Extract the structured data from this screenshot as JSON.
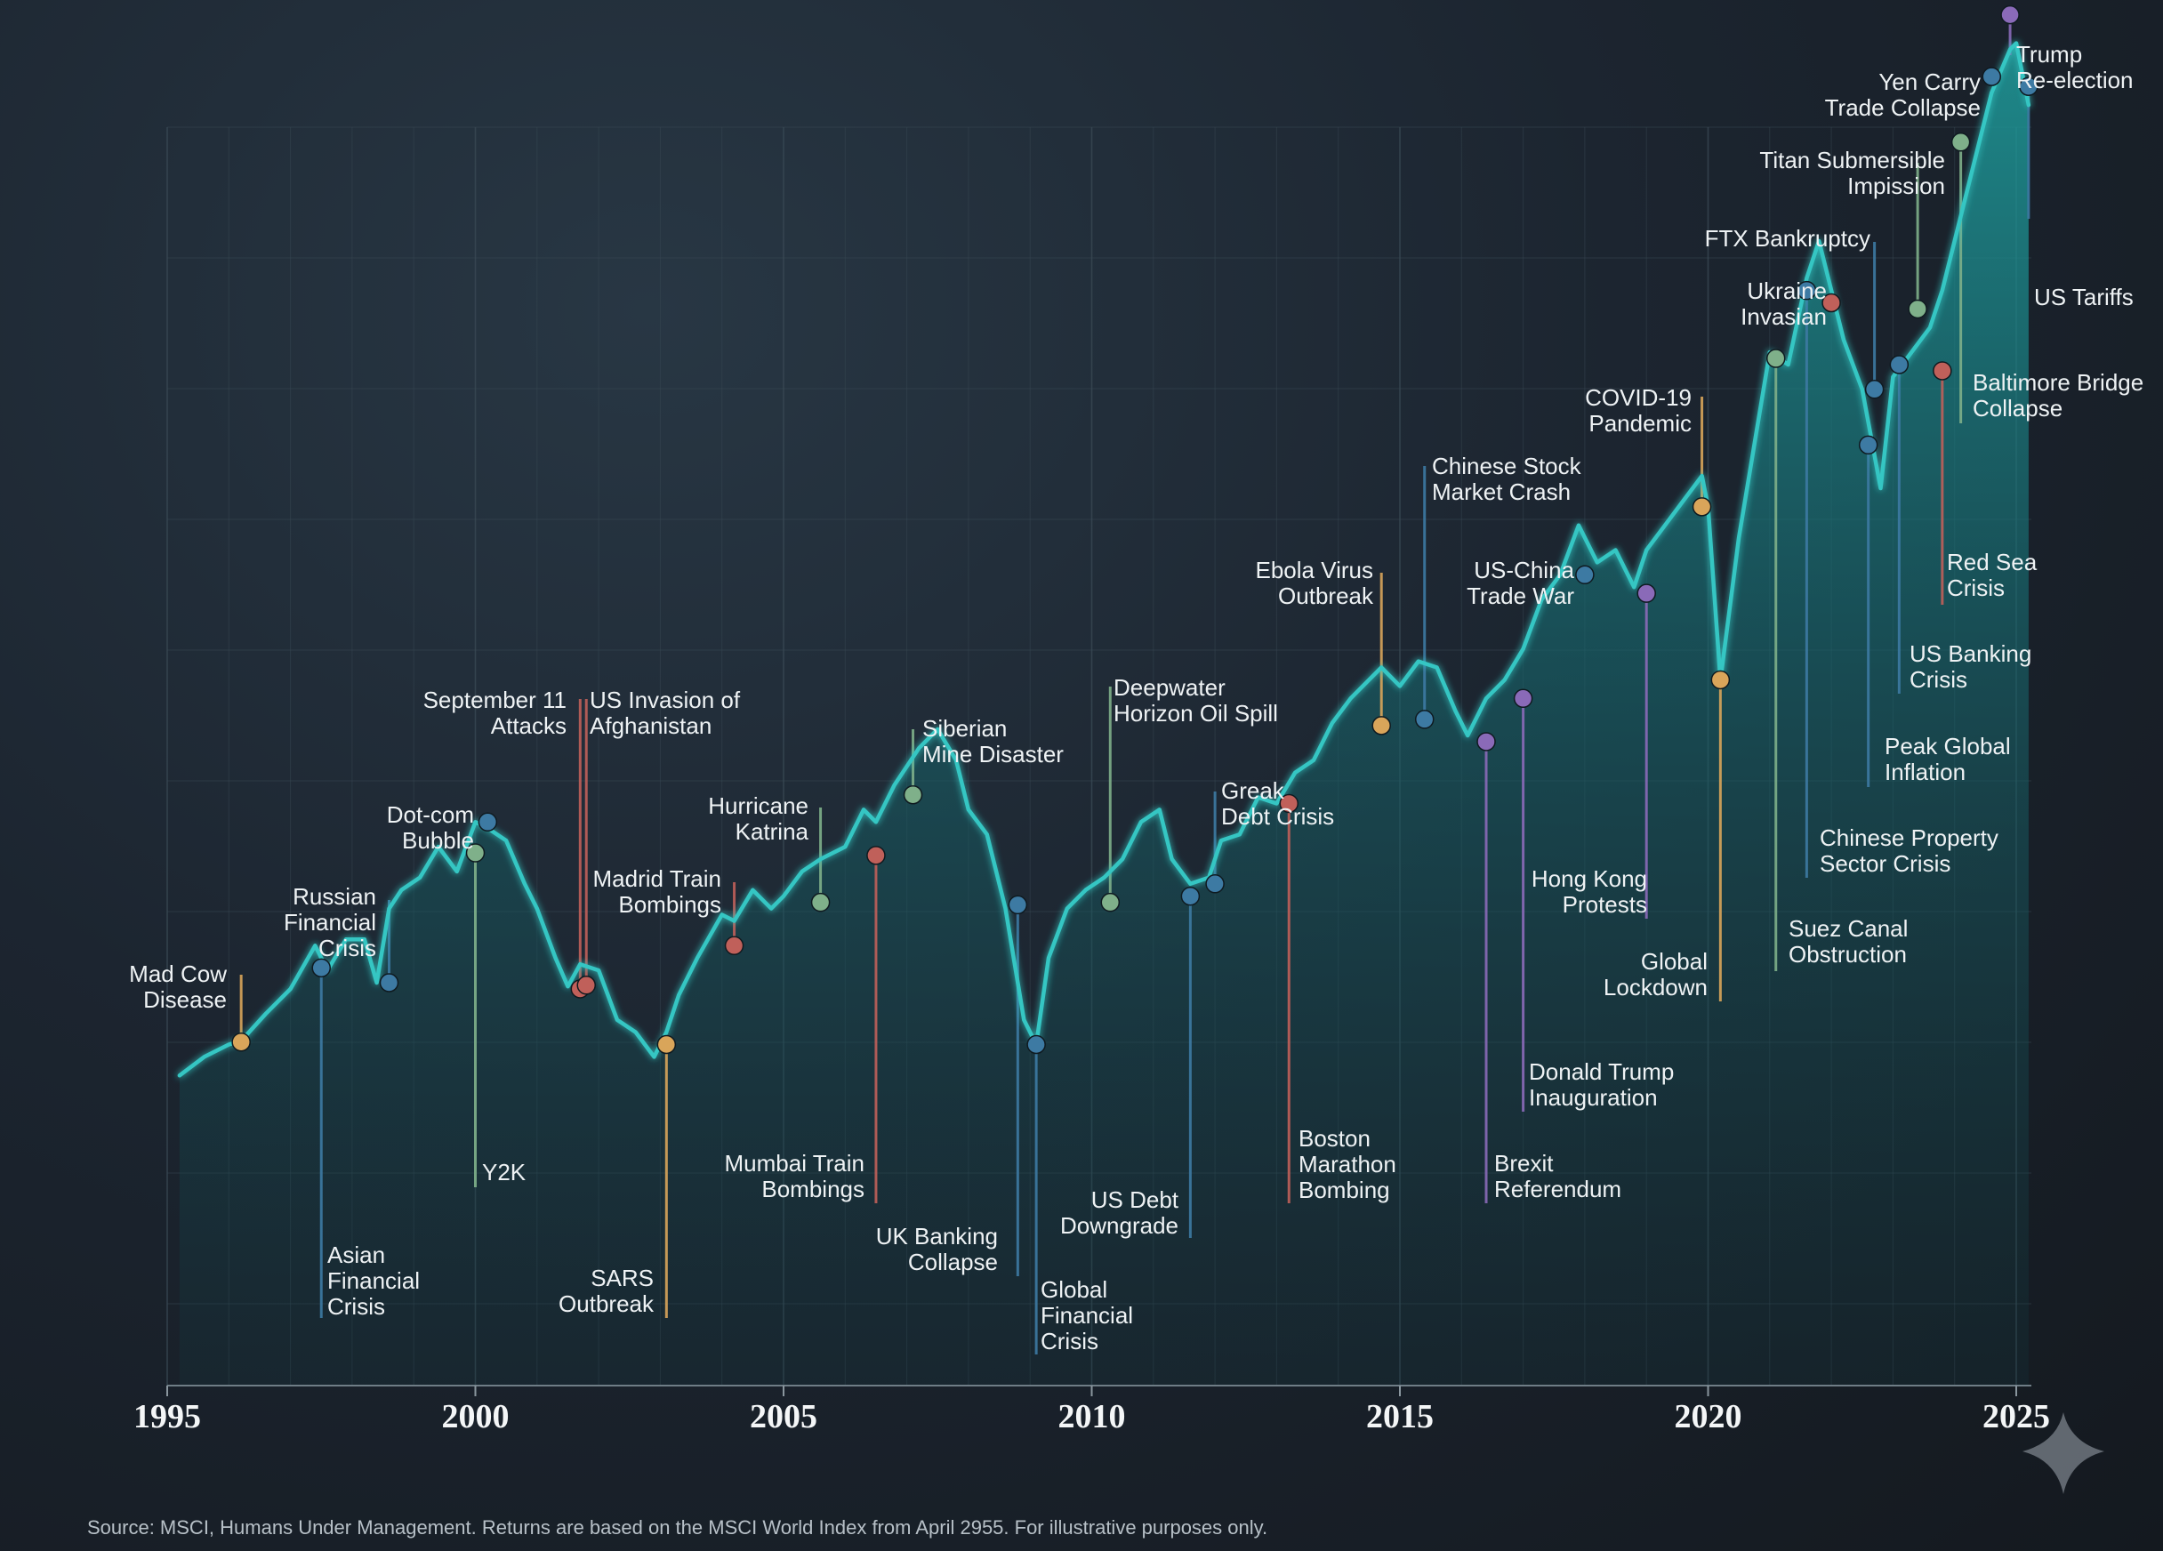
{
  "source_note": "Source: MSCI, Humans Under Management. Returns are based on the MSCI World Index from April 2955. For illustrative purposes only.",
  "colors": {
    "background": "#1a222b",
    "line": "#35c6c3",
    "area_top": "#1d8a8c",
    "grid": "#3a4a55",
    "orange": "#d9a55a",
    "blue": "#3d7aa3",
    "green": "#7fb08a",
    "red": "#c0605a",
    "purple": "#8a6ab8"
  },
  "chart_data": {
    "type": "area",
    "title": "",
    "xlabel": "",
    "ylabel": "",
    "grid": true,
    "legend": "none",
    "xlim": [
      1995,
      2025.5
    ],
    "ylim": [
      0,
      100
    ],
    "x_ticks": [
      "1995",
      "2000",
      "2005",
      "2010",
      "2015",
      "2020",
      "2025"
    ],
    "series": [
      {
        "x": [
          1995.2,
          1995.6,
          1996.0,
          1996.2,
          1996.6,
          1997.0,
          1997.4,
          1997.6,
          1997.9,
          1998.2,
          1998.4,
          1998.6,
          1998.8,
          1999.1,
          1999.4,
          1999.7,
          2000.0,
          2000.2,
          2000.5,
          2000.8,
          2001.0,
          2001.3,
          2001.5,
          2001.7,
          2002.0,
          2002.3,
          2002.6,
          2002.9,
          2003.1,
          2003.3,
          2003.6,
          2004.0,
          2004.2,
          2004.5,
          2004.8,
          2005.0,
          2005.3,
          2005.6,
          2006.0,
          2006.3,
          2006.5,
          2006.8,
          2007.2,
          2007.5,
          2007.8,
          2008.0,
          2008.3,
          2008.6,
          2008.9,
          2009.1,
          2009.3,
          2009.6,
          2009.9,
          2010.2,
          2010.5,
          2010.8,
          2011.1,
          2011.3,
          2011.6,
          2011.9,
          2012.1,
          2012.4,
          2012.7,
          2013.0,
          2013.3,
          2013.6,
          2013.9,
          2014.2,
          2014.5,
          2014.7,
          2015.0,
          2015.3,
          2015.6,
          2015.9,
          2016.1,
          2016.4,
          2016.7,
          2017.0,
          2017.3,
          2017.6,
          2017.9,
          2018.2,
          2018.5,
          2018.8,
          2019.0,
          2019.3,
          2019.6,
          2019.9,
          2020.0,
          2020.2,
          2020.5,
          2020.8,
          2021.0,
          2021.3,
          2021.6,
          2021.8,
          2022.0,
          2022.2,
          2022.5,
          2022.8,
          2023.0,
          2023.3,
          2023.6,
          2023.8,
          2024.1,
          2024.4,
          2024.6,
          2024.9,
          2025.0,
          2025.2
        ],
        "y": [
          12.5,
          14,
          15,
          15.3,
          17.5,
          19.5,
          23,
          21,
          23.5,
          23.5,
          20,
          26,
          27.5,
          28.5,
          31,
          29,
          33,
          32.5,
          31.5,
          28,
          26,
          22,
          19.7,
          21.5,
          21,
          17,
          16,
          14,
          16,
          19,
          22,
          25.5,
          25,
          27.5,
          26,
          27,
          29,
          30,
          31,
          34,
          33,
          36,
          39,
          40.5,
          38,
          34,
          32,
          26,
          17,
          15,
          22,
          26,
          27.5,
          28.5,
          30,
          33,
          34,
          30,
          28,
          28.5,
          31.5,
          32,
          35,
          34.5,
          37,
          38,
          41,
          43,
          44.5,
          45.5,
          44,
          46,
          45.5,
          42,
          40,
          43,
          44.5,
          47,
          51,
          53,
          57,
          54,
          55,
          52,
          55,
          57,
          59,
          61,
          58.5,
          44.5,
          56,
          65,
          71,
          70,
          77,
          80,
          76,
          72,
          68,
          60,
          69,
          71,
          73,
          76,
          82,
          88,
          92,
          95.5,
          96,
          91
        ]
      }
    ],
    "events": [
      {
        "label": [
          "Mad Cow",
          "Disease"
        ],
        "x": 1996.2,
        "y": 15.2,
        "color": "orange"
      },
      {
        "label": [
          "Asian",
          "Financial",
          "Crisis"
        ],
        "x": 1997.5,
        "y": 21.2,
        "color": "blue"
      },
      {
        "label": [
          "Russian",
          "Financial",
          "Crisis"
        ],
        "x": 1998.6,
        "y": 20.0,
        "color": "blue"
      },
      {
        "label": [
          "Y2K"
        ],
        "x": 2000.0,
        "y": 30.5,
        "color": "green"
      },
      {
        "label": [
          "Dot-com",
          "Bubble"
        ],
        "x": 2000.2,
        "y": 33.0,
        "color": "blue"
      },
      {
        "label": [
          "September 11",
          "Attacks"
        ],
        "x": 2001.7,
        "y": 19.5,
        "color": "red"
      },
      {
        "label": [
          "US Invasion of",
          "Afghanistan"
        ],
        "x": 2001.8,
        "y": 19.8,
        "color": "red"
      },
      {
        "label": [
          "SARS",
          "Outbreak"
        ],
        "x": 2003.1,
        "y": 15.0,
        "color": "orange"
      },
      {
        "label": [
          "Madrid Train",
          "Bombings"
        ],
        "x": 2004.2,
        "y": 23.0,
        "color": "red"
      },
      {
        "label": [
          "Hurricane",
          "Katrina"
        ],
        "x": 2005.6,
        "y": 26.5,
        "color": "green"
      },
      {
        "label": [
          "Mumbai Train",
          "Bombings"
        ],
        "x": 2006.5,
        "y": 30.3,
        "color": "red"
      },
      {
        "label": [
          "Siberian",
          "Mine Disaster"
        ],
        "x": 2007.1,
        "y": 35.2,
        "color": "green"
      },
      {
        "label": [
          "UK Banking",
          "Collapse"
        ],
        "x": 2008.8,
        "y": 26.3,
        "color": "blue"
      },
      {
        "label": [
          "Global",
          "Financial",
          "Crisis"
        ],
        "x": 2009.1,
        "y": 15.0,
        "color": "blue"
      },
      {
        "label": [
          "Deepwater",
          "Horizon Oil Spill"
        ],
        "x": 2010.3,
        "y": 26.5,
        "color": "green"
      },
      {
        "label": [
          "US Debt",
          "Downgrade"
        ],
        "x": 2011.6,
        "y": 27.0,
        "color": "blue"
      },
      {
        "label": [
          "Greak",
          "Debt Crisis"
        ],
        "x": 2012.0,
        "y": 28.0,
        "color": "blue"
      },
      {
        "label": [
          "Boston",
          "Marathon",
          "Bombing"
        ],
        "x": 2013.2,
        "y": 34.5,
        "color": "red"
      },
      {
        "label": [
          "Ebola Virus",
          "Outbreak"
        ],
        "x": 2014.7,
        "y": 40.8,
        "color": "orange"
      },
      {
        "label": [
          "Chinese Stock",
          "Market Crash"
        ],
        "x": 2015.4,
        "y": 41.3,
        "color": "blue"
      },
      {
        "label": [
          "Brexit",
          "Referendum"
        ],
        "x": 2016.4,
        "y": 39.5,
        "color": "purple"
      },
      {
        "label": [
          "Donald Trump",
          "Inauguration"
        ],
        "x": 2017.0,
        "y": 43.0,
        "color": "purple"
      },
      {
        "label": [
          "US-China",
          "Trade War"
        ],
        "x": 2018.0,
        "y": 53.0,
        "color": "blue"
      },
      {
        "label": [
          "Hong Kong",
          "Protests"
        ],
        "x": 2019.0,
        "y": 51.5,
        "color": "purple"
      },
      {
        "label": [
          "COVID-19",
          "Pandemic"
        ],
        "x": 2019.9,
        "y": 58.5,
        "color": "orange"
      },
      {
        "label": [
          "Global",
          "Lockdown"
        ],
        "x": 2020.2,
        "y": 44.5,
        "color": "orange"
      },
      {
        "label": [
          "Suez Canal",
          "Obstruction"
        ],
        "x": 2021.1,
        "y": 70.5,
        "color": "green"
      },
      {
        "label": [
          "Chinese Property",
          "Sector Crisis"
        ],
        "x": 2021.6,
        "y": 76.0,
        "color": "blue"
      },
      {
        "label": [
          "Ukraine",
          "Invasian"
        ],
        "x": 2022.0,
        "y": 75.0,
        "color": "red"
      },
      {
        "label": [
          "Peak Global",
          "Inflation"
        ],
        "x": 2022.6,
        "y": 63.5,
        "color": "blue"
      },
      {
        "label": [
          "FTX Bankruptcy"
        ],
        "x": 2022.7,
        "y": 68.0,
        "color": "blue"
      },
      {
        "label": [
          "US Banking",
          "Crisis"
        ],
        "x": 2023.1,
        "y": 70.0,
        "color": "blue"
      },
      {
        "label": [
          "Titan Submersible",
          "Impission"
        ],
        "x": 2023.4,
        "y": 74.5,
        "color": "green"
      },
      {
        "label": [
          "Red Sea",
          "Crisis"
        ],
        "x": 2023.8,
        "y": 69.5,
        "color": "red"
      },
      {
        "label": [
          "Baltimore Bridge",
          "Collapse"
        ],
        "x": 2024.1,
        "y": 88.0,
        "color": "green"
      },
      {
        "label": [
          "Yen Carry",
          "Trade Collapse"
        ],
        "x": 2024.6,
        "y": 93.3,
        "color": "blue"
      },
      {
        "label": [
          "Trump",
          "Re-election"
        ],
        "x": 2024.9,
        "y": 98.3,
        "color": "purple"
      },
      {
        "label": [
          "US Tariffs"
        ],
        "x": 2025.2,
        "y": 92.5,
        "color": "blue"
      }
    ]
  }
}
